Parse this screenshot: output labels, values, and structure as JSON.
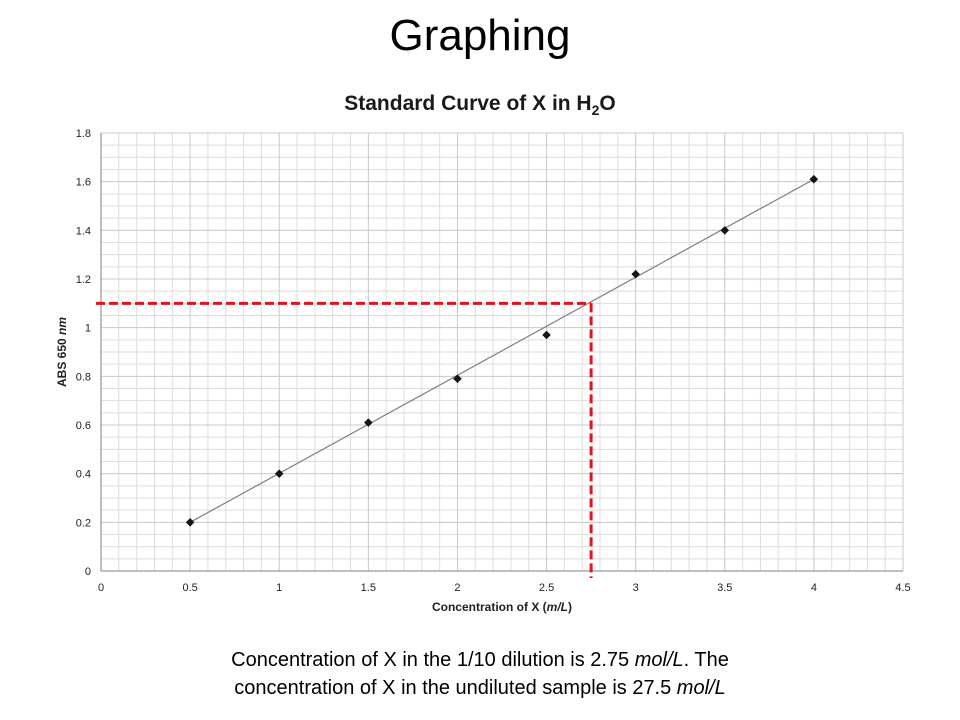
{
  "slide": {
    "title": "Graphing"
  },
  "caption": {
    "line1_a": "Concentration of X in the 1/10 dilution is 2.75 ",
    "line1_unit": "mol/L",
    "line1_b": ".  The",
    "line2_a": "concentration of X in the undiluted sample is 27.5 ",
    "line2_unit": "mol/L"
  },
  "chart_data": {
    "type": "scatter",
    "title_main": "Standard Curve of X in H",
    "title_sub": "2",
    "title_end": "O",
    "xlabel_main": "Concentration of X (",
    "xlabel_unit": "m/L",
    "xlabel_end": ")",
    "ylabel_main": "ABS 650 ",
    "ylabel_unit": "nm",
    "xlim": [
      0,
      4.5
    ],
    "ylim": [
      0,
      1.8
    ],
    "x_ticks": [
      "0",
      "0.5",
      "1",
      "1.5",
      "2",
      "2.5",
      "3",
      "3.5",
      "4",
      "4.5"
    ],
    "y_ticks": [
      "0",
      "0.2",
      "0.4",
      "0.6",
      "0.8",
      "1",
      "1.2",
      "1.4",
      "1.6",
      "1.8"
    ],
    "points": [
      {
        "x": 0.5,
        "y": 0.2
      },
      {
        "x": 1.0,
        "y": 0.4
      },
      {
        "x": 1.5,
        "y": 0.61
      },
      {
        "x": 2.0,
        "y": 0.79
      },
      {
        "x": 2.5,
        "y": 0.97
      },
      {
        "x": 3.0,
        "y": 1.22
      },
      {
        "x": 3.5,
        "y": 1.4
      },
      {
        "x": 4.0,
        "y": 1.61
      }
    ],
    "trendline": {
      "x0": 0.5,
      "y0": 0.2,
      "x1": 4.0,
      "y1": 1.61
    },
    "reading": {
      "x": 2.75,
      "y": 1.1
    },
    "grid": true,
    "colors": {
      "marker": "#0b1a12",
      "trend": "#7f7f7f",
      "guide": "#e0141d",
      "grid": "#c8c8c8"
    }
  }
}
